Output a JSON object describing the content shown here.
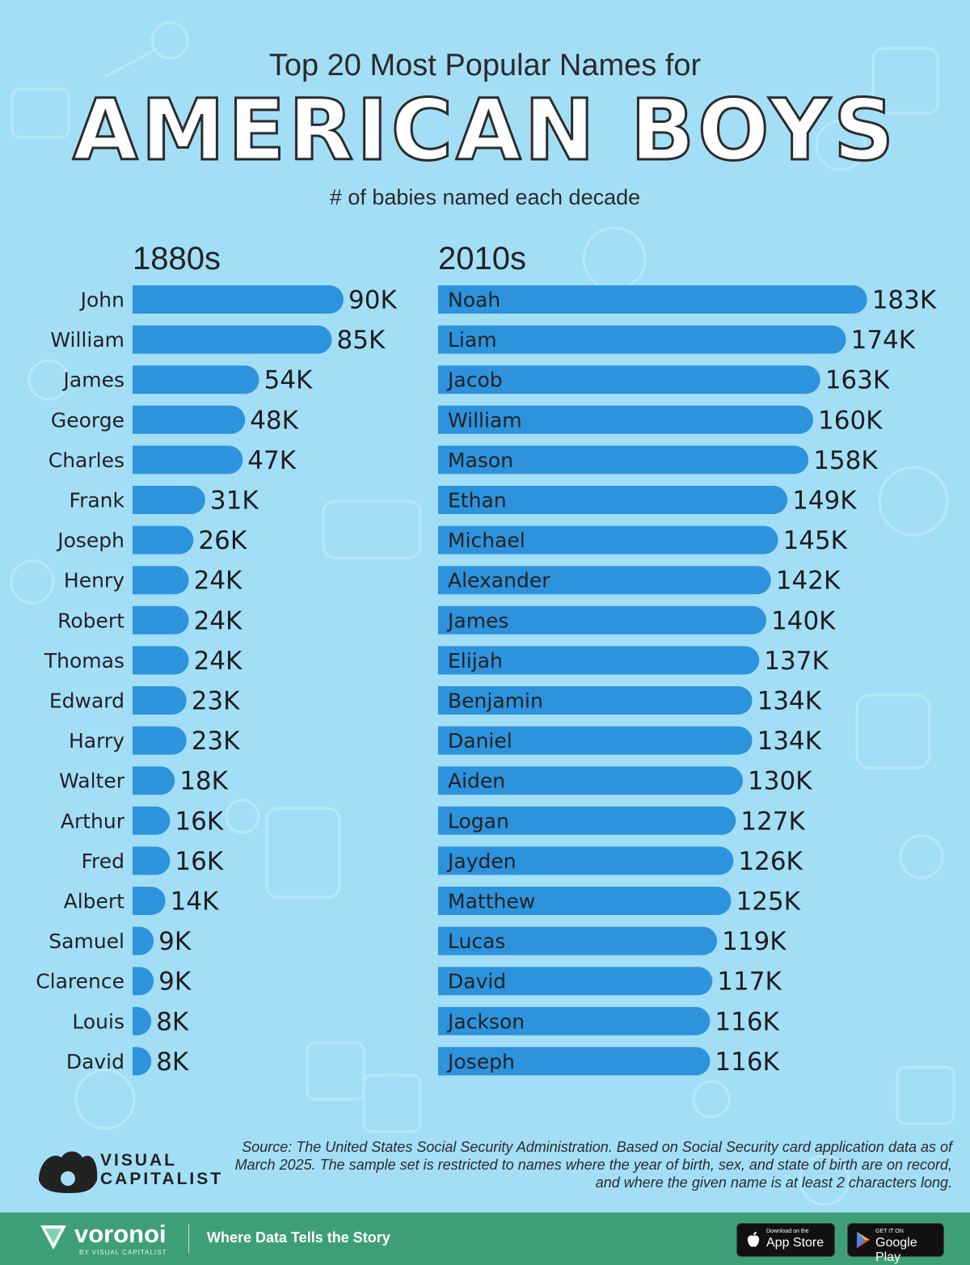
{
  "header": {
    "pre_title": "Top 20 Most Popular Names for",
    "main_title": "AMERICAN BOYS",
    "subtitle": "# of babies named each decade"
  },
  "chart_data": [
    {
      "type": "bar",
      "orientation": "horizontal",
      "title": "1880s",
      "categories": [
        "John",
        "William",
        "James",
        "George",
        "Charles",
        "Frank",
        "Joseph",
        "Henry",
        "Robert",
        "Thomas",
        "Edward",
        "Harry",
        "Walter",
        "Arthur",
        "Fred",
        "Albert",
        "Samuel",
        "Clarence",
        "Louis",
        "David"
      ],
      "values": [
        90,
        85,
        54,
        48,
        47,
        31,
        26,
        24,
        24,
        24,
        23,
        23,
        18,
        16,
        16,
        14,
        9,
        9,
        8,
        8
      ],
      "value_labels": [
        "90K",
        "85K",
        "54K",
        "48K",
        "47K",
        "31K",
        "26K",
        "24K",
        "24K",
        "24K",
        "23K",
        "23K",
        "18K",
        "16K",
        "16K",
        "14K",
        "9K",
        "9K",
        "8K",
        "8K"
      ],
      "unit": "K",
      "bar_color": "#2d93dd",
      "grid": false
    },
    {
      "type": "bar",
      "orientation": "horizontal",
      "title": "2010s",
      "categories": [
        "Noah",
        "Liam",
        "Jacob",
        "William",
        "Mason",
        "Ethan",
        "Michael",
        "Alexander",
        "James",
        "Elijah",
        "Benjamin",
        "Daniel",
        "Aiden",
        "Logan",
        "Jayden",
        "Matthew",
        "Lucas",
        "David",
        "Jackson",
        "Joseph"
      ],
      "values": [
        183,
        174,
        163,
        160,
        158,
        149,
        145,
        142,
        140,
        137,
        134,
        134,
        130,
        127,
        126,
        125,
        119,
        117,
        116,
        116
      ],
      "value_labels": [
        "183K",
        "174K",
        "163K",
        "160K",
        "158K",
        "149K",
        "145K",
        "142K",
        "140K",
        "137K",
        "134K",
        "134K",
        "130K",
        "127K",
        "126K",
        "125K",
        "119K",
        "117K",
        "116K",
        "116K"
      ],
      "unit": "K",
      "bar_color": "#2d93dd",
      "grid": false
    }
  ],
  "source": "Source: The United States Social Security Administration. Based on Social Security card application data as of March 2025. The sample set is restricted to names where the year of birth, sex, and state of birth are on record, and where the given name is at least 2 characters long.",
  "brand": {
    "vc_line1": "VISUAL",
    "vc_line2": "CAPITALIST",
    "voronoi_name": "voronoi",
    "voronoi_sub": "BY VISUAL CAPITALIST",
    "tagline": "Where Data Tells the Story",
    "app_store_small": "Download on the",
    "app_store_big": "App Store",
    "google_small": "GET IT ON",
    "google_big": "Google Play"
  },
  "colors": {
    "background": "#a3def7",
    "bar": "#2d93dd",
    "footer": "#3e9e78"
  }
}
